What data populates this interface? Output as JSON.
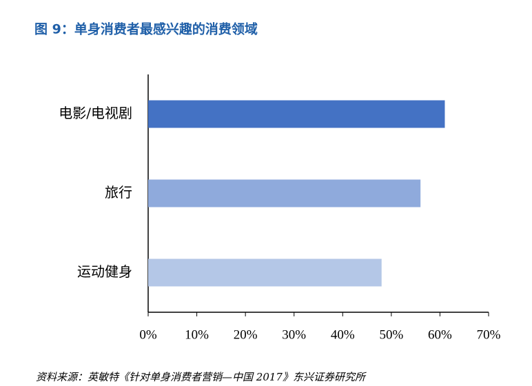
{
  "chart_data": {
    "type": "bar",
    "orientation": "horizontal",
    "title": "图 9：单身消费者最感兴趣的消费领域",
    "source": "资料来源：英敏特《针对单身消费者营销—中国 2017》东兴证券研究所",
    "categories": [
      "电影/电视剧",
      "旅行",
      "运动健身"
    ],
    "values": [
      61,
      56,
      48
    ],
    "colors": [
      "#4472c4",
      "#8faadc",
      "#b4c7e7"
    ],
    "xlim": [
      0,
      70
    ],
    "xticks": [
      {
        "value": 0,
        "label": "0%"
      },
      {
        "value": 10,
        "label": "10%"
      },
      {
        "value": 20,
        "label": "20%"
      },
      {
        "value": 30,
        "label": "30%"
      },
      {
        "value": 40,
        "label": "40%"
      },
      {
        "value": 50,
        "label": "50%"
      },
      {
        "value": 60,
        "label": "60%"
      },
      {
        "value": 70,
        "label": "70%"
      }
    ],
    "grid": false
  }
}
